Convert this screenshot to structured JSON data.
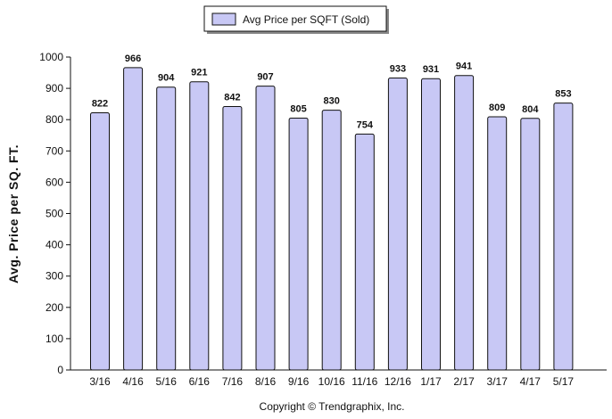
{
  "chart_data": {
    "type": "bar",
    "categories": [
      "3/16",
      "4/16",
      "5/16",
      "6/16",
      "7/16",
      "8/16",
      "9/16",
      "10/16",
      "11/16",
      "12/16",
      "1/17",
      "2/17",
      "3/17",
      "4/17",
      "5/17"
    ],
    "series": [
      {
        "name": "Avg Price per SQFT (Sold)",
        "values": [
          822,
          966,
          904,
          921,
          842,
          907,
          805,
          830,
          754,
          933,
          931,
          941,
          809,
          804,
          853
        ]
      }
    ],
    "data_labels": [
      "822",
      "966",
      "904",
      "921",
      "842",
      "907",
      "805",
      "830",
      "754",
      "933",
      "931",
      "941",
      "809",
      "804",
      "853"
    ],
    "title": "",
    "xlabel": "",
    "ylabel": "Avg. Price per SQ. FT.",
    "ylim": [
      0,
      1000
    ],
    "yticks": [
      "0",
      "100",
      "200",
      "300",
      "400",
      "500",
      "600",
      "700",
      "800",
      "900",
      "1000"
    ],
    "grid": false,
    "legend_position": "top-center",
    "bar_color": "#c8c8f5",
    "bar_border_color": "#111111"
  },
  "footer": {
    "copyright": "Copyright © Trendgraphix, Inc."
  }
}
